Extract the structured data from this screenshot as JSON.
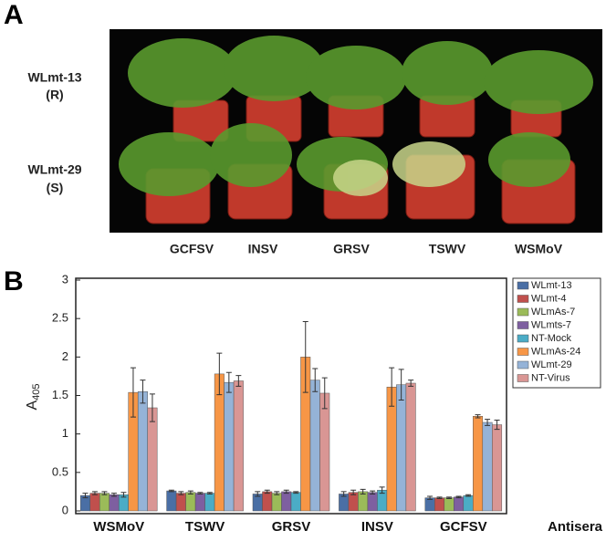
{
  "panel_labels": [
    "A",
    "B"
  ],
  "photo": {
    "rows": [
      {
        "line": "WLmt-13",
        "response": "(R)"
      },
      {
        "line": "WLmt-29",
        "response": "(S)"
      }
    ],
    "columns": [
      "GCFSV",
      "INSV",
      "GRSV",
      "TSWV",
      "WSMoV"
    ]
  },
  "chart_data": {
    "type": "bar",
    "y_label": "A",
    "y_label_subscript": "405",
    "x_label": "Antisera",
    "categories": [
      "WSMoV",
      "TSWV",
      "GRSV",
      "INSV",
      "GCFSV"
    ],
    "ylim": [
      0,
      3
    ],
    "yticks": [
      0,
      0.5,
      1,
      1.5,
      2,
      2.5,
      3
    ],
    "legend": "right",
    "series": [
      {
        "name": "WLmt-13",
        "color": "#4a6fa5",
        "values": [
          0.2,
          0.26,
          0.22,
          0.22,
          0.17
        ],
        "errors": [
          0.03,
          0.01,
          0.03,
          0.03,
          0.02
        ]
      },
      {
        "name": "WLmt-4",
        "color": "#c0504d",
        "values": [
          0.23,
          0.23,
          0.25,
          0.24,
          0.17
        ],
        "errors": [
          0.02,
          0.02,
          0.02,
          0.03,
          0.01
        ]
      },
      {
        "name": "WLmAs-7",
        "color": "#9bbb59",
        "values": [
          0.23,
          0.24,
          0.23,
          0.25,
          0.17
        ],
        "errors": [
          0.02,
          0.02,
          0.02,
          0.03,
          0.01
        ]
      },
      {
        "name": "WLmts-7",
        "color": "#7e5fa0",
        "values": [
          0.21,
          0.23,
          0.25,
          0.24,
          0.18
        ],
        "errors": [
          0.02,
          0.01,
          0.02,
          0.02,
          0.01
        ]
      },
      {
        "name": "NT-Mock",
        "color": "#4bacc6",
        "values": [
          0.21,
          0.23,
          0.24,
          0.27,
          0.2
        ],
        "errors": [
          0.03,
          0.01,
          0.01,
          0.04,
          0.01
        ]
      },
      {
        "name": "WLmAs-24",
        "color": "#f79646",
        "values": [
          1.54,
          1.78,
          2.0,
          1.61,
          1.23
        ],
        "errors": [
          0.32,
          0.27,
          0.46,
          0.25,
          0.02
        ]
      },
      {
        "name": "WLmt-29",
        "color": "#95b3d7",
        "values": [
          1.55,
          1.67,
          1.7,
          1.64,
          1.15
        ],
        "errors": [
          0.15,
          0.13,
          0.15,
          0.2,
          0.04
        ]
      },
      {
        "name": "NT-Virus",
        "color": "#d99694",
        "values": [
          1.34,
          1.69,
          1.53,
          1.66,
          1.12
        ],
        "errors": [
          0.18,
          0.07,
          0.2,
          0.04,
          0.06
        ]
      }
    ]
  }
}
